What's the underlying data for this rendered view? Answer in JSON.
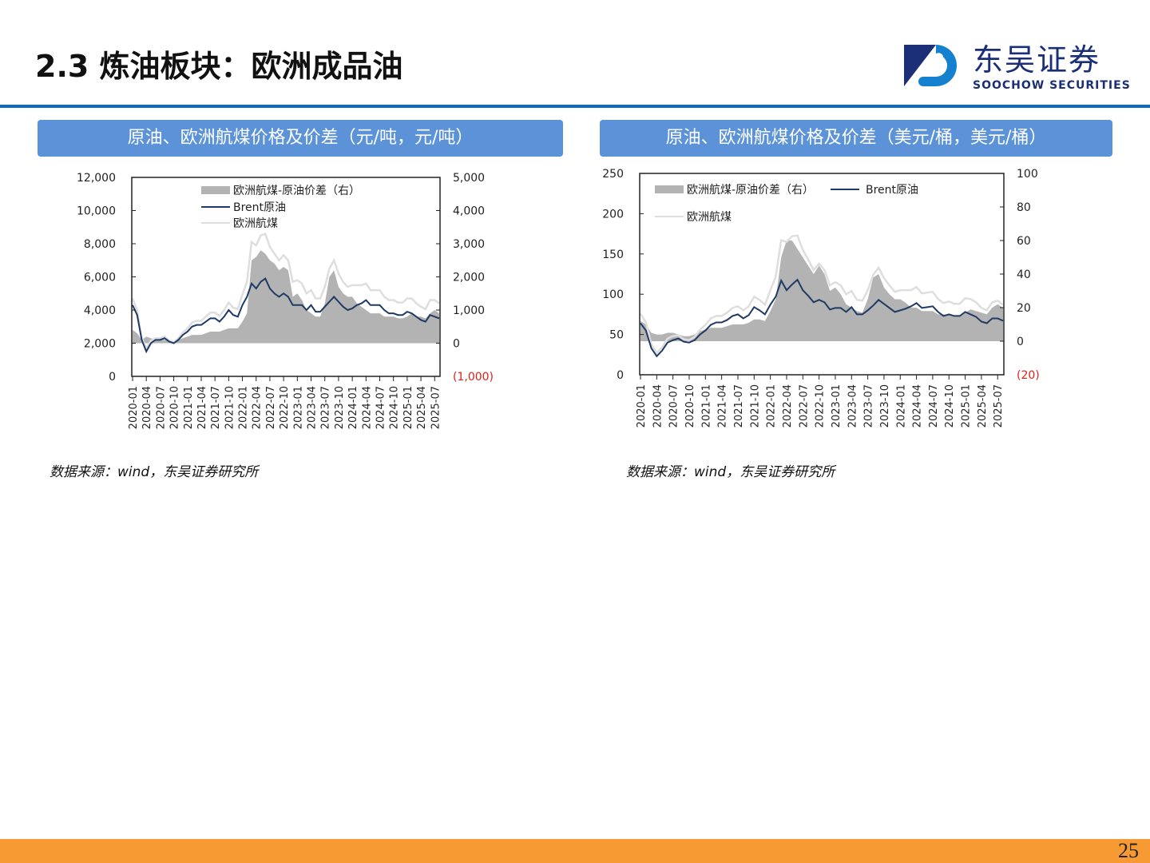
{
  "header": {
    "title": "2.3 炼油板块：欧洲成品油",
    "logo_cn": "东吴证券",
    "logo_en": "SOOCHOW SECURITIES"
  },
  "footer": {
    "page": "25"
  },
  "chart_data": [
    {
      "type": "line",
      "title": "原油、欧洲航煤价格及价差（元/吨，元/吨）",
      "source": "数据来源：wind，东吴证券研究所",
      "x_start": "2020-01",
      "x_ticks": [
        "2020-01",
        "2020-04",
        "2020-07",
        "2020-10",
        "2021-01",
        "2021-04",
        "2021-07",
        "2021-10",
        "2022-01",
        "2022-04",
        "2022-07",
        "2022-10",
        "2023-01",
        "2023-04",
        "2023-07",
        "2023-10",
        "2024-01",
        "2024-04",
        "2024-07",
        "2024-10",
        "2025-01",
        "2025-04",
        "2025-07"
      ],
      "ylim": [
        0,
        12000
      ],
      "y_ticks": [
        "0",
        "2,000",
        "4,000",
        "6,000",
        "8,000",
        "10,000",
        "12,000"
      ],
      "y2lim": [
        -1000,
        5000
      ],
      "y2_ticks": [
        "(1,000)",
        "0",
        "1,000",
        "2,000",
        "3,000",
        "4,000",
        "5,000"
      ],
      "legend": [
        "欧洲航煤-原油价差（右）",
        "Brent原油",
        "欧洲航煤"
      ],
      "legend_layout": "stacked",
      "series": [
        {
          "name": "Brent原油",
          "axis": "left",
          "values": [
            4300,
            3700,
            2200,
            1500,
            2000,
            2200,
            2200,
            2300,
            2100,
            2000,
            2200,
            2500,
            2700,
            3000,
            3100,
            3100,
            3300,
            3500,
            3500,
            3300,
            3600,
            4000,
            3700,
            3600,
            4300,
            4800,
            5600,
            5300,
            5700,
            5900,
            5300,
            5000,
            4800,
            5000,
            4800,
            4300,
            4300,
            4300,
            4000,
            4300,
            3900,
            3900,
            4200,
            4500,
            4800,
            4500,
            4200,
            4000,
            4100,
            4300,
            4400,
            4600,
            4300,
            4300,
            4300,
            4000,
            3800,
            3800,
            3700,
            3700,
            3900,
            3800,
            3600,
            3400,
            3300,
            3700,
            3600,
            3500
          ]
        },
        {
          "name": "欧洲航煤-原油价差（右）",
          "axis": "right",
          "values": [
            400,
            300,
            100,
            200,
            150,
            100,
            100,
            100,
            50,
            50,
            100,
            150,
            200,
            250,
            250,
            250,
            300,
            350,
            350,
            350,
            400,
            450,
            450,
            450,
            650,
            900,
            2500,
            2600,
            2800,
            2700,
            2500,
            2400,
            2200,
            2300,
            2200,
            1400,
            1500,
            1300,
            1000,
            900,
            800,
            800,
            1200,
            2000,
            2200,
            1700,
            1500,
            1400,
            1400,
            1200,
            1100,
            1000,
            900,
            900,
            900,
            800,
            800,
            800,
            750,
            750,
            800,
            900,
            800,
            800,
            750,
            900,
            1000,
            900
          ]
        }
      ]
    },
    {
      "type": "line",
      "title": "原油、欧洲航煤价格及价差（美元/桶，美元/桶）",
      "source": "数据来源：wind，东吴证券研究所",
      "x_start": "2020-01",
      "x_ticks": [
        "2020-01",
        "2020-04",
        "2020-07",
        "2020-10",
        "2021-01",
        "2021-04",
        "2021-07",
        "2021-10",
        "2022-01",
        "2022-04",
        "2022-07",
        "2022-10",
        "2023-01",
        "2023-04",
        "2023-07",
        "2023-10",
        "2024-01",
        "2024-04",
        "2024-07",
        "2024-10",
        "2025-01",
        "2025-04",
        "2025-07"
      ],
      "ylim": [
        0,
        250
      ],
      "y_ticks": [
        "0",
        "50",
        "100",
        "150",
        "200",
        "250"
      ],
      "y2lim": [
        -20,
        100
      ],
      "y2_ticks": [
        "(20)",
        "0",
        "20",
        "40",
        "60",
        "80",
        "100"
      ],
      "legend": [
        "欧洲航煤-原油价差（右）",
        "Brent原油",
        "欧洲航煤"
      ],
      "legend_layout": "wide",
      "series": [
        {
          "name": "Brent原油",
          "axis": "left",
          "values": [
            64,
            55,
            33,
            23,
            30,
            40,
            43,
            45,
            41,
            40,
            43,
            50,
            55,
            62,
            65,
            65,
            68,
            73,
            75,
            70,
            74,
            84,
            80,
            75,
            87,
            97,
            117,
            105,
            112,
            118,
            105,
            98,
            90,
            93,
            90,
            81,
            83,
            83,
            78,
            84,
            75,
            75,
            80,
            86,
            93,
            88,
            83,
            78,
            80,
            82,
            85,
            89,
            83,
            84,
            85,
            78,
            73,
            75,
            73,
            73,
            78,
            75,
            72,
            66,
            64,
            70,
            70,
            67
          ]
        },
        {
          "name": "欧洲航煤-原油价差（右）",
          "axis": "right",
          "values": [
            12,
            10,
            5,
            4,
            4,
            5,
            5,
            4,
            3,
            3,
            4,
            6,
            7,
            8,
            8,
            8,
            9,
            10,
            10,
            10,
            11,
            13,
            13,
            12,
            18,
            25,
            50,
            60,
            60,
            55,
            50,
            45,
            40,
            45,
            40,
            30,
            32,
            28,
            22,
            20,
            18,
            17,
            25,
            38,
            40,
            32,
            28,
            25,
            25,
            23,
            20,
            20,
            18,
            18,
            18,
            16,
            16,
            16,
            15,
            15,
            17,
            19,
            18,
            17,
            16,
            20,
            22,
            20
          ]
        }
      ]
    }
  ],
  "colors": {
    "spread": "#b3b3b3",
    "brent": "#1f3a64",
    "jet": "#dedede",
    "negative": "#e0201b",
    "bar": "#5b92d8"
  }
}
